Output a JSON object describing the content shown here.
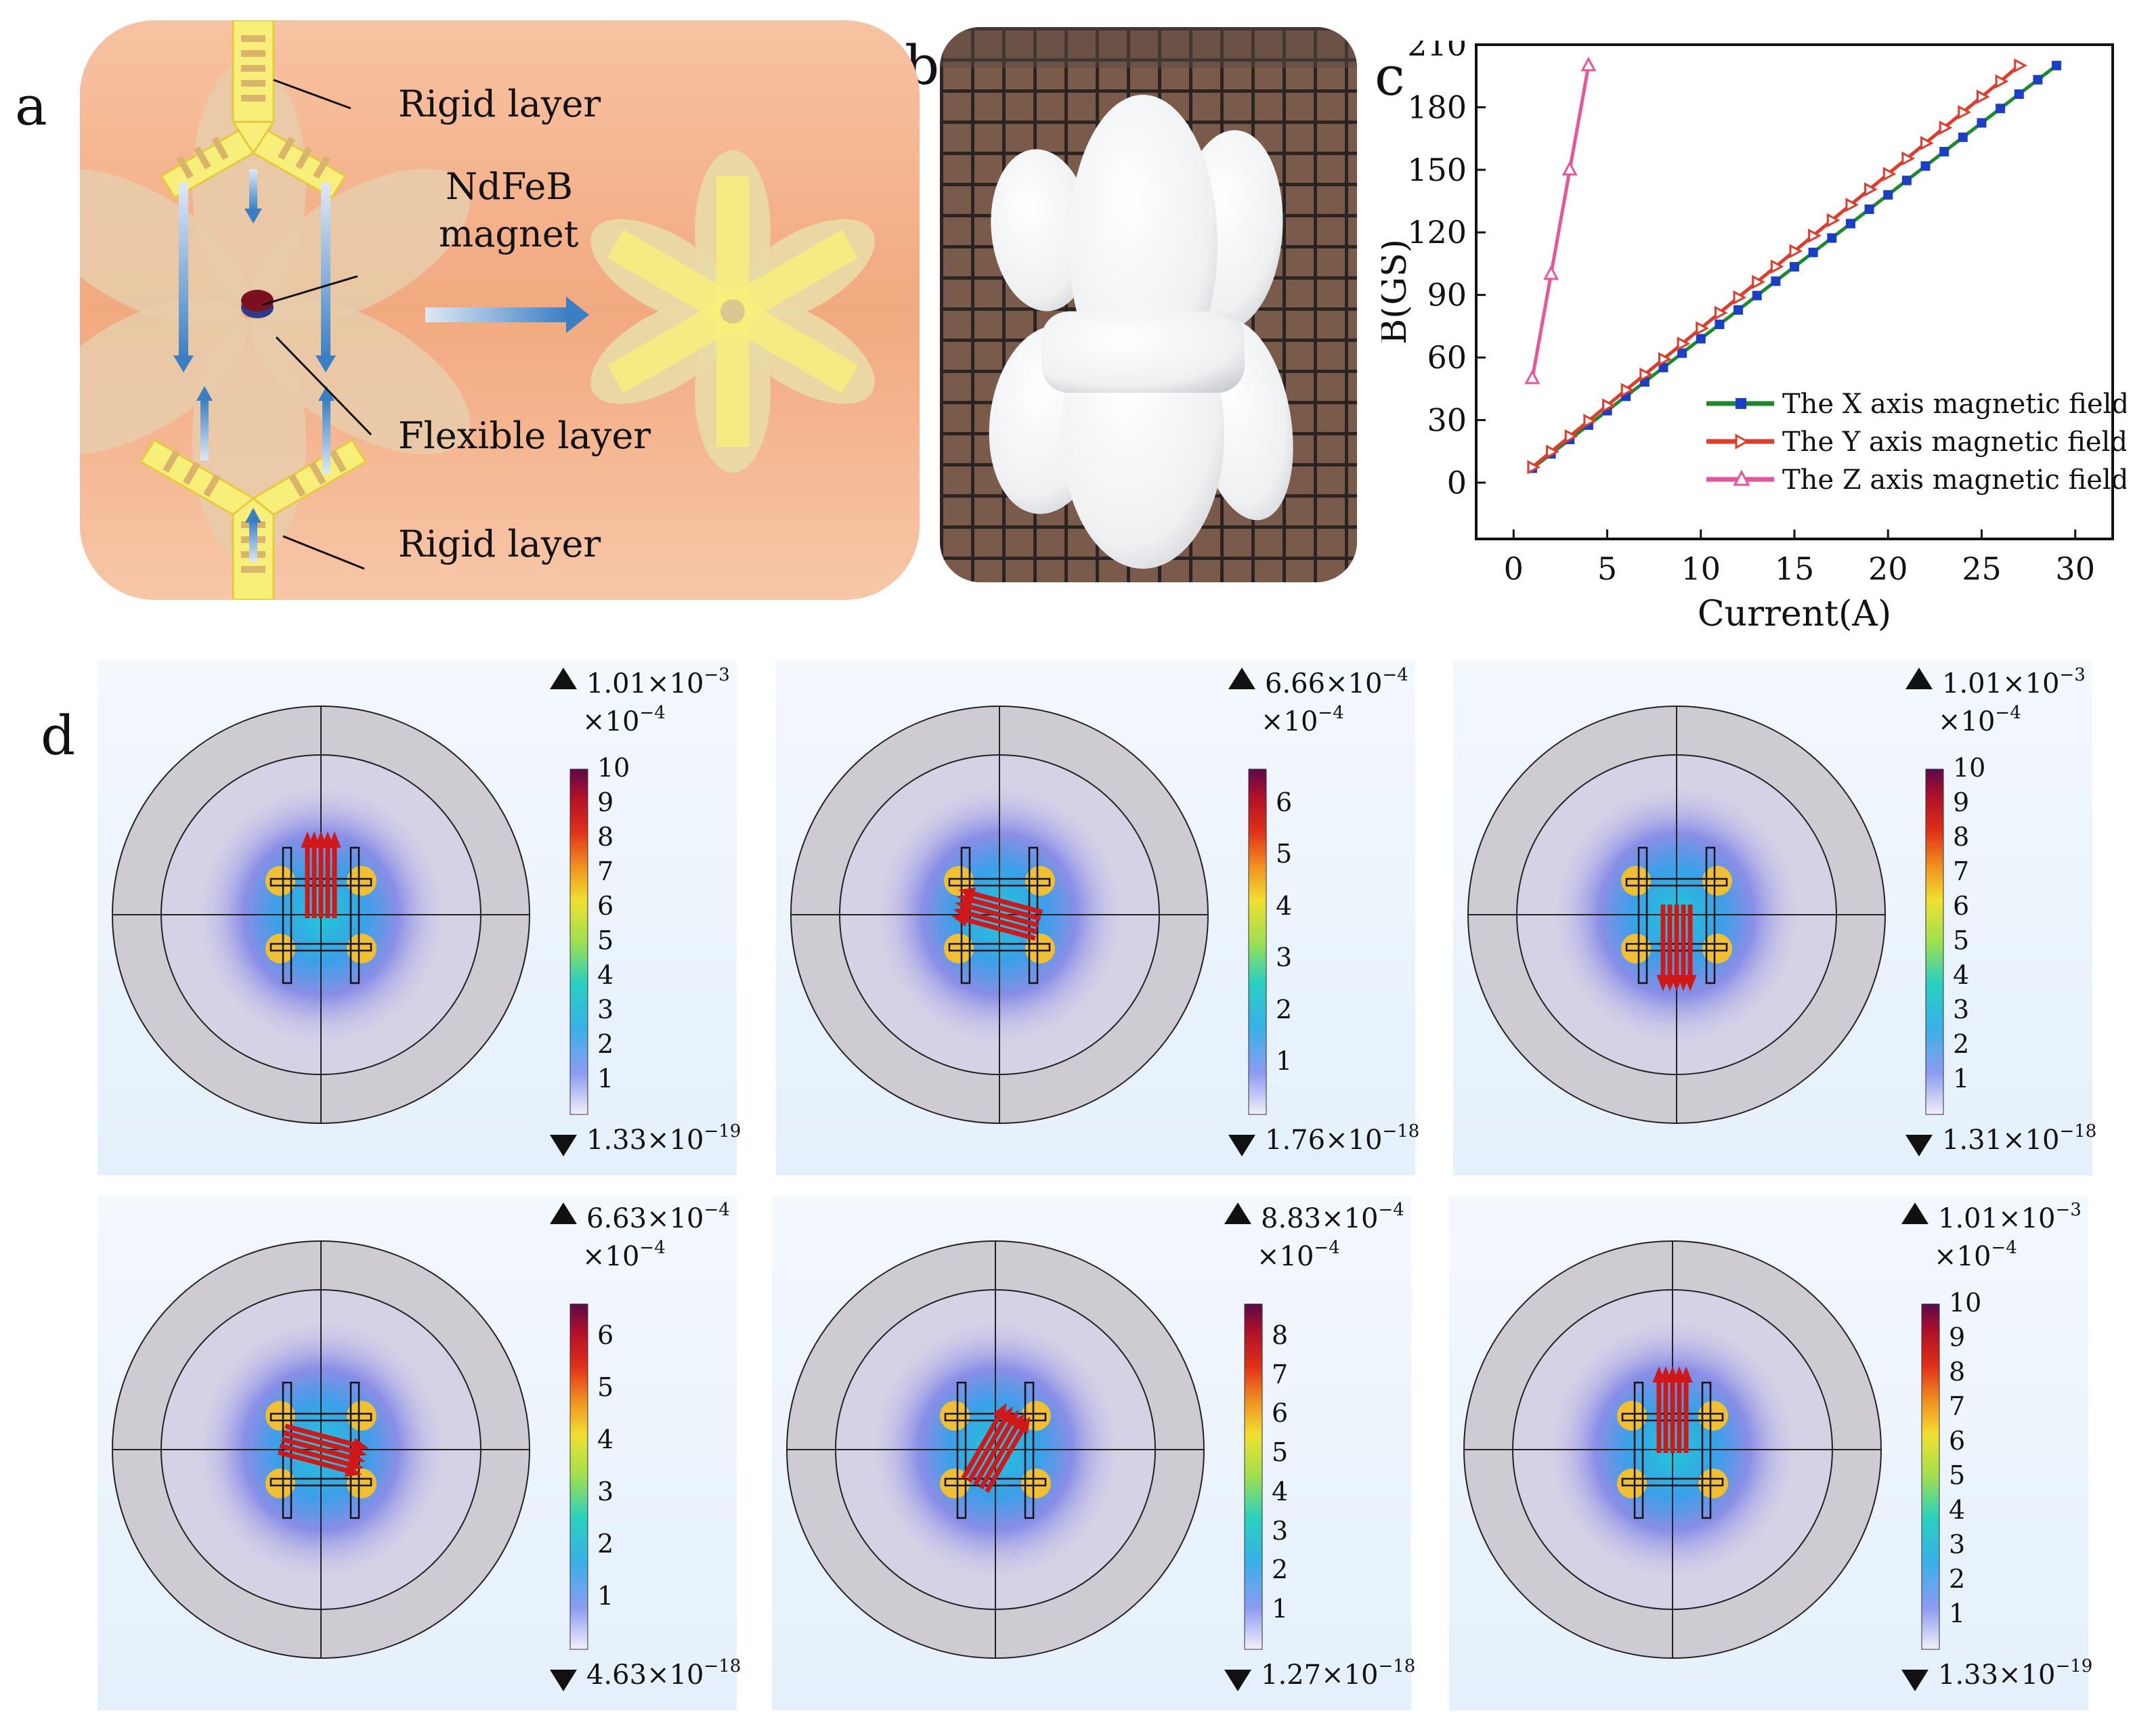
{
  "panel_letters": {
    "a": "a",
    "b": "b",
    "c": "c",
    "d": "d"
  },
  "panel_a": {
    "rigid_top": "Rigid layer",
    "magnet_line1": "NdFeB",
    "magnet_line2": "magnet",
    "flexible": "Flexible layer",
    "rigid_bottom": "Rigid layer",
    "colors": {
      "bg": "#f4b893",
      "rigid": "#f6f07a",
      "flex": "#e8ccaa",
      "arrow": "#3a7fc4",
      "magnet": "#7a1020"
    }
  },
  "panel_b": {
    "description_color_bg": "#6b4a3a"
  },
  "chart_data": {
    "type": "line",
    "xlabel": "Current(A)",
    "ylabel": "B(GS)",
    "xlim": [
      -2,
      32
    ],
    "ylim": [
      -27,
      210
    ],
    "xticks": [
      0,
      5,
      10,
      15,
      20,
      25,
      30
    ],
    "yticks": [
      0,
      30,
      60,
      90,
      120,
      150,
      180,
      210
    ],
    "legend_position": "bottom-right",
    "series": [
      {
        "name": "The X axis magnetic field",
        "color": "#1a8a2a",
        "marker": "square",
        "x": [
          1,
          2,
          3,
          4,
          5,
          6,
          7,
          8,
          9,
          10,
          11,
          12,
          13,
          14,
          15,
          16,
          17,
          18,
          19,
          20,
          21,
          22,
          23,
          24,
          25,
          26,
          27,
          28,
          29
        ],
        "y": [
          6.9,
          13.8,
          20.7,
          27.6,
          34.5,
          41.4,
          48.3,
          55.2,
          62.1,
          69,
          75.9,
          82.8,
          89.7,
          96.6,
          103.5,
          110.4,
          117.3,
          124.2,
          131.1,
          138,
          144.9,
          151.8,
          158.7,
          165.6,
          172.5,
          179.4,
          186.3,
          193.2,
          200
        ]
      },
      {
        "name": "The Y axis magnetic field",
        "color": "#e03c2c",
        "marker": "triangle-right",
        "x": [
          1,
          2,
          3,
          4,
          5,
          6,
          7,
          8,
          9,
          10,
          11,
          12,
          13,
          14,
          15,
          16,
          17,
          18,
          19,
          20,
          21,
          22,
          23,
          24,
          25,
          26,
          27
        ],
        "y": [
          7.4,
          14.8,
          22.2,
          29.6,
          37,
          44.4,
          51.8,
          59.2,
          66.6,
          74,
          81.4,
          88.8,
          96.2,
          103.6,
          111,
          118.4,
          125.8,
          133.2,
          140.6,
          148,
          155.4,
          162.8,
          170.2,
          177.6,
          185,
          192.4,
          200
        ]
      },
      {
        "name": "The Z axis magnetic field",
        "color": "#e8559a",
        "marker": "triangle",
        "x": [
          1,
          2,
          3,
          4
        ],
        "y": [
          50,
          100,
          150,
          200
        ]
      }
    ]
  },
  "panel_d": {
    "colors": {
      "disk": "#cfcbd2",
      "arrow": "#d01818"
    },
    "sims": [
      {
        "max_prefix": "1.01×10",
        "max_exp": "−3",
        "min_prefix": "1.33×10",
        "min_exp": "−19",
        "unit_prefix": "×10",
        "unit_exp": "−4",
        "scale_max": 10,
        "ticks": [
          "1",
          "2",
          "3",
          "4",
          "5",
          "6",
          "7",
          "8",
          "9",
          "10"
        ],
        "arrow_dir": "up"
      },
      {
        "max_prefix": "6.66×10",
        "max_exp": "−4",
        "min_prefix": "1.76×10",
        "min_exp": "−18",
        "unit_prefix": "×10",
        "unit_exp": "−4",
        "scale_max": 6.66,
        "ticks": [
          "1",
          "2",
          "3",
          "4",
          "5",
          "6"
        ],
        "arrow_dir": "left"
      },
      {
        "max_prefix": "1.01×10",
        "max_exp": "−3",
        "min_prefix": "1.31×10",
        "min_exp": "−18",
        "unit_prefix": "×10",
        "unit_exp": "−4",
        "scale_max": 10,
        "ticks": [
          "1",
          "2",
          "3",
          "4",
          "5",
          "6",
          "7",
          "8",
          "9",
          "10"
        ],
        "arrow_dir": "down"
      },
      {
        "max_prefix": "6.63×10",
        "max_exp": "−4",
        "min_prefix": "4.63×10",
        "min_exp": "−18",
        "unit_prefix": "×10",
        "unit_exp": "−4",
        "scale_max": 6.63,
        "ticks": [
          "1",
          "2",
          "3",
          "4",
          "5",
          "6"
        ],
        "arrow_dir": "right"
      },
      {
        "max_prefix": "8.83×10",
        "max_exp": "−4",
        "min_prefix": "1.27×10",
        "min_exp": "−18",
        "unit_prefix": "×10",
        "unit_exp": "−4",
        "scale_max": 8.83,
        "ticks": [
          "1",
          "2",
          "3",
          "4",
          "5",
          "6",
          "7",
          "8"
        ],
        "arrow_dir": "up-right"
      },
      {
        "max_prefix": "1.01×10",
        "max_exp": "−3",
        "min_prefix": "1.33×10",
        "min_exp": "−19",
        "unit_prefix": "×10",
        "unit_exp": "−4",
        "scale_max": 10,
        "ticks": [
          "1",
          "2",
          "3",
          "4",
          "5",
          "6",
          "7",
          "8",
          "9",
          "10"
        ],
        "arrow_dir": "up"
      }
    ]
  }
}
